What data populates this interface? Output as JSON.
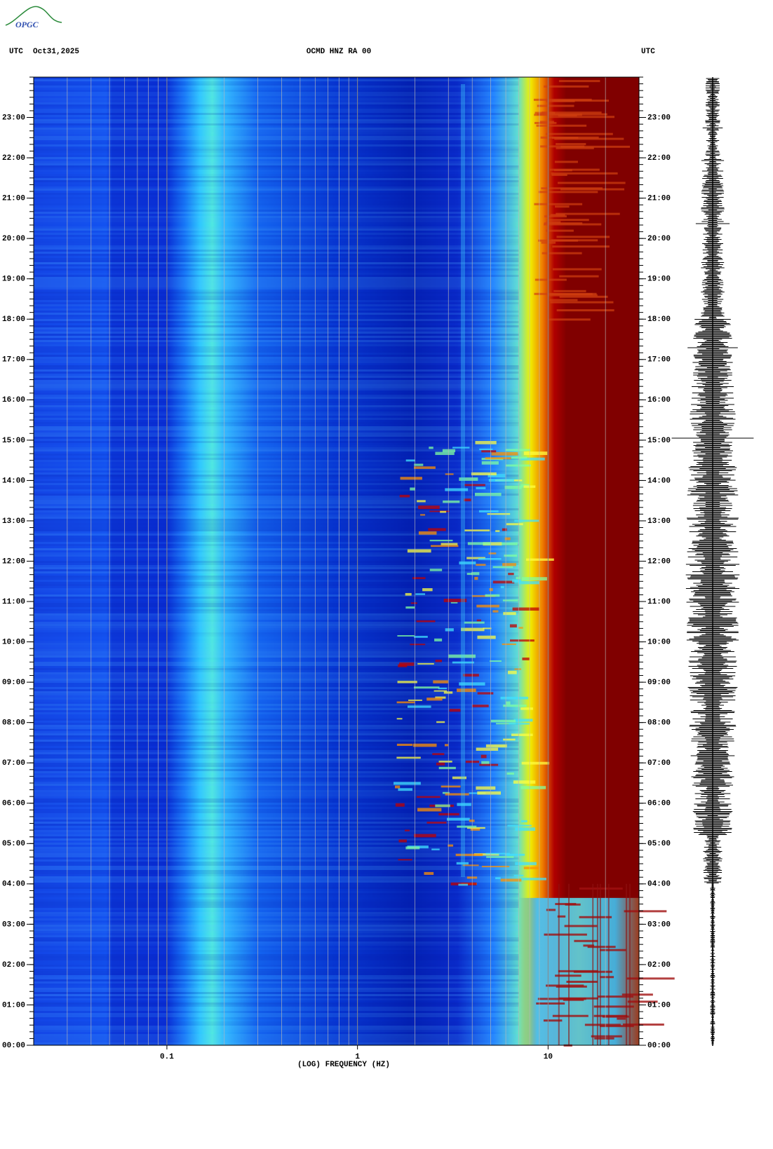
{
  "logo": "OPGC",
  "chart_data": {
    "type": "spectrogram",
    "title": "OCMD HNZ RA 00",
    "left_label": "UTC",
    "date": "Oct31,2025",
    "right_label": "UTC",
    "xlabel": "(LOG) FREQUENCY (HZ)",
    "xscale": "log",
    "xlim": [
      0.02,
      30
    ],
    "xticks": [
      0.1,
      1,
      10
    ],
    "ylim": [
      0,
      24
    ],
    "yticks": [
      {
        "value": 0,
        "label": "00:00"
      },
      {
        "value": 1,
        "label": "01:00"
      },
      {
        "value": 2,
        "label": "02:00"
      },
      {
        "value": 3,
        "label": "03:00"
      },
      {
        "value": 4,
        "label": "04:00"
      },
      {
        "value": 5,
        "label": "05:00"
      },
      {
        "value": 6,
        "label": "06:00"
      },
      {
        "value": 7,
        "label": "07:00"
      },
      {
        "value": 8,
        "label": "08:00"
      },
      {
        "value": 9,
        "label": "09:00"
      },
      {
        "value": 10,
        "label": "10:00"
      },
      {
        "value": 11,
        "label": "11:00"
      },
      {
        "value": 12,
        "label": "12:00"
      },
      {
        "value": 13,
        "label": "13:00"
      },
      {
        "value": 14,
        "label": "14:00"
      },
      {
        "value": 15,
        "label": "15:00"
      },
      {
        "value": 16,
        "label": "16:00"
      },
      {
        "value": 17,
        "label": "17:00"
      },
      {
        "value": 18,
        "label": "18:00"
      },
      {
        "value": 19,
        "label": "19:00"
      },
      {
        "value": 20,
        "label": "20:00"
      },
      {
        "value": 21,
        "label": "21:00"
      },
      {
        "value": 22,
        "label": "22:00"
      },
      {
        "value": 23,
        "label": "23:00"
      }
    ]
  }
}
